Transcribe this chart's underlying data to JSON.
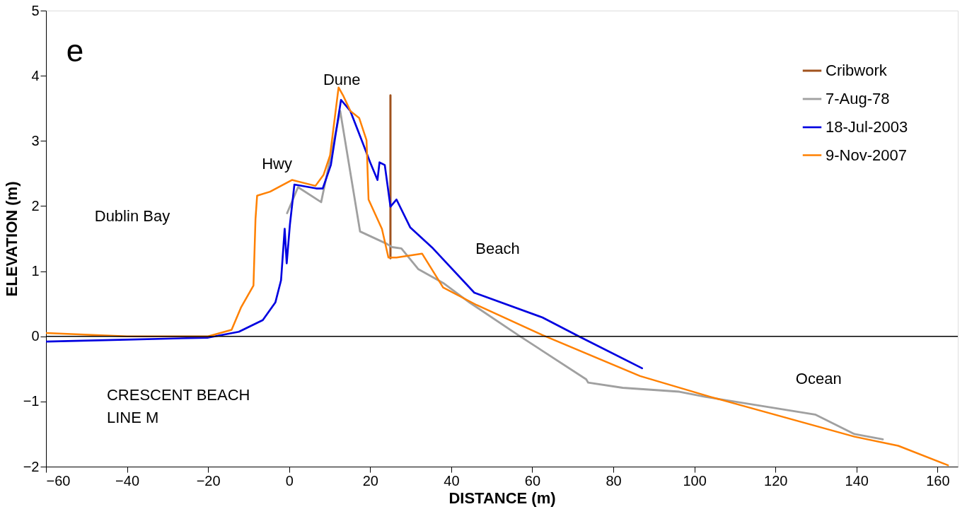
{
  "chart_data": {
    "type": "line",
    "xlabel": "DISTANCE (m)",
    "ylabel": "ELEVATION (m)",
    "xlim": [
      -60,
      165
    ],
    "xticks": [
      -60,
      -40,
      -20,
      0,
      20,
      40,
      60,
      80,
      100,
      120,
      140,
      160
    ],
    "ylim": [
      -2,
      5
    ],
    "yticks": [
      -2,
      -1,
      0,
      1,
      2,
      3,
      4,
      5
    ],
    "grid": false,
    "legend": "top right",
    "line_style": "solid",
    "marker": "none",
    "ref_lines": [
      {
        "axis": "y",
        "value": 0,
        "color": "#000000"
      }
    ],
    "annotations": [
      "e",
      "Dune",
      "Hwy",
      "Dublin Bay",
      "Beach",
      "Ocean",
      "CRESCENT BEACH\nLINE M"
    ],
    "series": [
      {
        "name": "Cribwork",
        "color": "#a0521d",
        "x": [
          25,
          25
        ],
        "values": [
          1.2,
          3.7
        ]
      },
      {
        "name": "7-Aug-78",
        "color": "#a0a0a0",
        "x": [
          -0.5,
          2.2,
          7.9,
          12.6,
          17.5,
          24.1,
          25.4,
          27.7,
          31.9,
          38,
          44.5,
          56.5,
          73.3,
          73.8,
          82.3,
          96.3,
          102.8,
          129.8,
          139.5,
          146.5
        ],
        "values": [
          1.89,
          2.29,
          2.06,
          3.46,
          1.61,
          1.42,
          1.37,
          1.35,
          1.03,
          0.82,
          0.52,
          0.02,
          -0.66,
          -0.71,
          -0.79,
          -0.85,
          -0.93,
          -1.2,
          -1.5,
          -1.58
        ]
      },
      {
        "name": "18-Jul-2003",
        "color": "#0000e0",
        "x": [
          -60,
          -40,
          -20,
          -12.4,
          -6.5,
          -3.4,
          -2,
          -1.1,
          -0.6,
          0.2,
          1.3,
          6.7,
          8.3,
          10.3,
          12.8,
          15.1,
          18.4,
          20,
          21.8,
          22.3,
          23.6,
          25,
          26.5,
          29.9,
          35.5,
          45.7,
          62.5,
          71.5,
          87.1
        ],
        "values": [
          -0.08,
          -0.05,
          -0.02,
          0.07,
          0.25,
          0.52,
          0.86,
          1.65,
          1.12,
          1.72,
          2.33,
          2.27,
          2.27,
          2.63,
          3.63,
          3.46,
          2.93,
          2.67,
          2.4,
          2.67,
          2.63,
          1.99,
          2.1,
          1.67,
          1.35,
          0.67,
          0.29,
          0.0,
          -0.49
        ]
      },
      {
        "name": "9-Nov-2007",
        "color": "#ff8000",
        "x": [
          -60,
          -40,
          -20,
          -14.2,
          -11.9,
          -8.8,
          -8.3,
          -7.9,
          -4.7,
          0.7,
          6.5,
          8.5,
          10.1,
          12.2,
          13.3,
          15.1,
          17.3,
          19.1,
          19.6,
          22.9,
          24.5,
          26.5,
          32.8,
          38,
          46.3,
          62.5,
          86.6,
          104,
          139.5,
          150.3,
          162.6
        ],
        "values": [
          0.05,
          0.0,
          0.0,
          0.1,
          0.44,
          0.78,
          1.8,
          2.16,
          2.22,
          2.4,
          2.31,
          2.48,
          2.78,
          3.82,
          3.7,
          3.46,
          3.35,
          3.01,
          2.1,
          1.65,
          1.21,
          1.21,
          1.27,
          0.75,
          0.48,
          0.02,
          -0.61,
          -0.93,
          -1.54,
          -1.68,
          -1.98
        ]
      }
    ]
  }
}
